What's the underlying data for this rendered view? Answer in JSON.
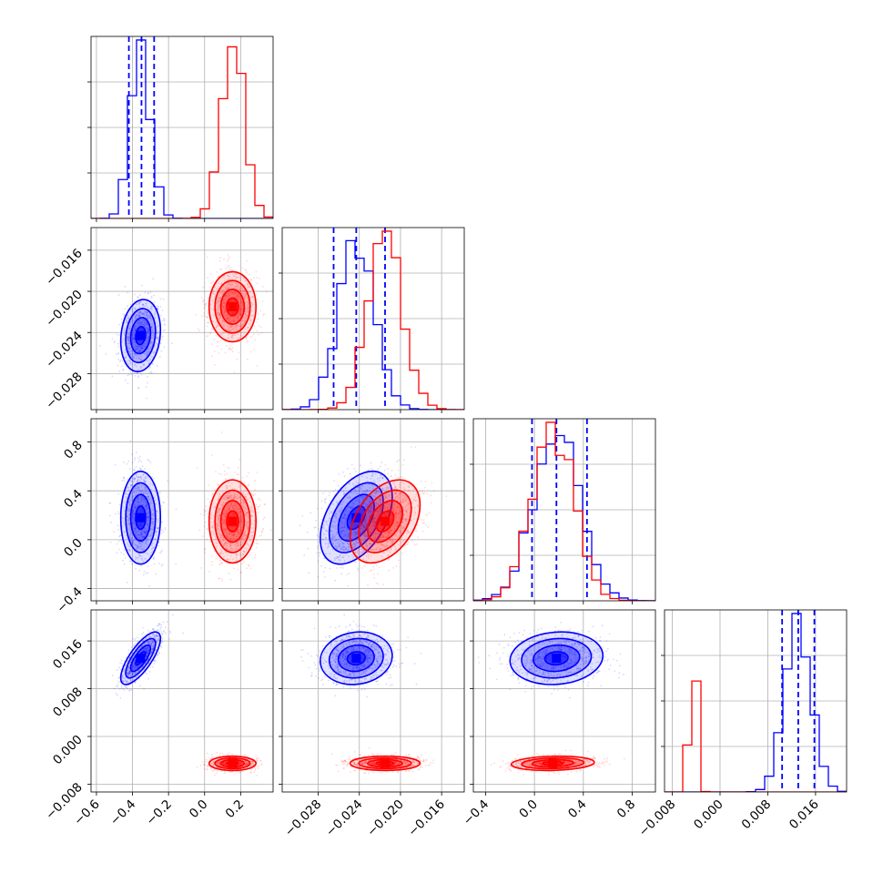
{
  "chart_data": {
    "type": "corner",
    "colors": {
      "series_a": "#0000ff",
      "series_b": "#ff0000"
    },
    "grid": true,
    "parameters": [
      {
        "index": 0,
        "range": [
          -0.63,
          0.38
        ],
        "ticks": [
          -0.6,
          -0.4,
          -0.2,
          0.0,
          0.2
        ],
        "tick_labels": [
          "−0.6",
          "−0.4",
          "−0.2",
          "0.0",
          "0.2"
        ]
      },
      {
        "index": 1,
        "range": [
          -0.0315,
          -0.0138
        ],
        "ticks": [
          -0.028,
          -0.024,
          -0.02,
          -0.016
        ],
        "tick_labels": [
          "−0.028",
          "−0.024",
          "−0.020",
          "−0.016"
        ]
      },
      {
        "index": 2,
        "range": [
          -0.5,
          0.99
        ],
        "ticks": [
          -0.4,
          0.0,
          0.4,
          0.8
        ],
        "tick_labels": [
          "−0.4",
          "0.0",
          "0.4",
          "0.8"
        ]
      },
      {
        "index": 3,
        "range": [
          -0.0093,
          0.0212
        ],
        "ticks": [
          -0.008,
          0.0,
          0.008,
          0.016
        ],
        "tick_labels": [
          "−0.008",
          "0.000",
          "0.008",
          "0.016"
        ]
      }
    ],
    "series": [
      {
        "color": "#0000ff",
        "means": [
          -0.355,
          -0.0243,
          0.18,
          0.0131
        ],
        "stds": [
          0.055,
          0.00175,
          0.19,
          0.0022
        ],
        "correlations": [
          [
            0,
            1,
            0.15
          ],
          [
            0,
            3,
            0.75
          ],
          [
            1,
            2,
            0.45
          ],
          [
            1,
            3,
            0.1
          ],
          [
            2,
            3,
            0.1
          ]
        ],
        "quantiles": [
          [
            -0.42,
            -0.35,
            -0.28
          ],
          [
            -0.0265,
            -0.0243,
            -0.0215
          ],
          [
            -0.02,
            0.18,
            0.43
          ],
          [
            0.0104,
            0.0131,
            0.0158
          ]
        ]
      },
      {
        "color": "#ff0000",
        "means": [
          0.155,
          -0.0215,
          0.15,
          -0.0045
        ],
        "stds": [
          0.065,
          0.0017,
          0.17,
          0.0006
        ],
        "correlations": [
          [
            1,
            2,
            0.4
          ],
          [
            2,
            3,
            0.15
          ]
        ],
        "quantiles": []
      }
    ]
  }
}
